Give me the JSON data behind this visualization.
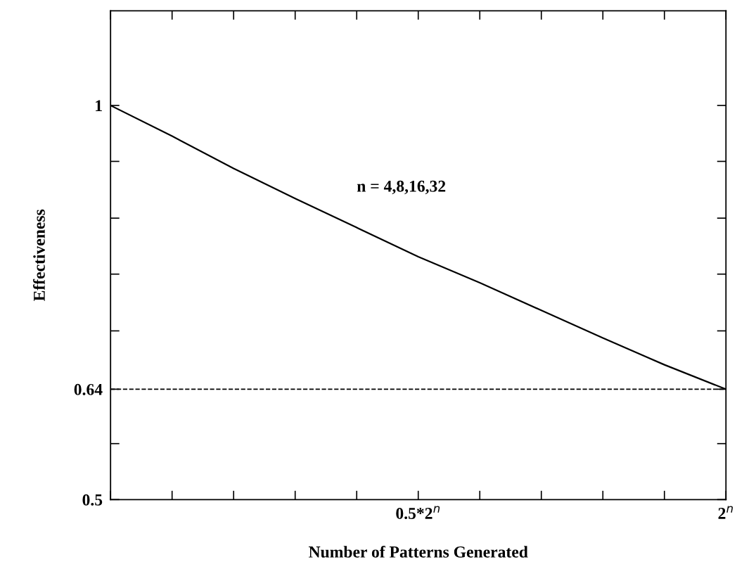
{
  "chart_data": {
    "type": "line",
    "xlabel": "Number of Patterns Generated",
    "ylabel": "Effectiveness",
    "categories": [
      null,
      null,
      null,
      null,
      null,
      "0.5*2$^{n}$",
      null,
      null,
      null,
      null,
      "2$^{n}$"
    ],
    "series": [
      {
        "color": "#000000",
        "values": [
          1.0,
          0.961,
          0.92,
          0.882,
          0.845,
          0.808,
          0.775,
          0.74,
          0.705,
          0.671,
          0.64
        ]
      }
    ],
    "ylim": [
      0.5,
      1.12
    ],
    "yticks": [
      {
        "value": 0.5,
        "label": "0.5"
      },
      {
        "value": 0.571,
        "label": null
      },
      {
        "value": 0.64,
        "label": "0.64"
      },
      {
        "value": 0.714,
        "label": null
      },
      {
        "value": 0.786,
        "label": null
      },
      {
        "value": 0.857,
        "label": null
      },
      {
        "value": 0.929,
        "label": null
      },
      {
        "value": 1.0,
        "label": "1"
      }
    ],
    "ref_lines": [
      {
        "axis": "y",
        "value": 0.64,
        "label": null,
        "line_style": "dashed",
        "color": "#000000"
      }
    ],
    "annotations": [
      "n = 4,8,16,32"
    ],
    "grid": false,
    "legend": false,
    "marker": "none",
    "line_style": "solid"
  }
}
